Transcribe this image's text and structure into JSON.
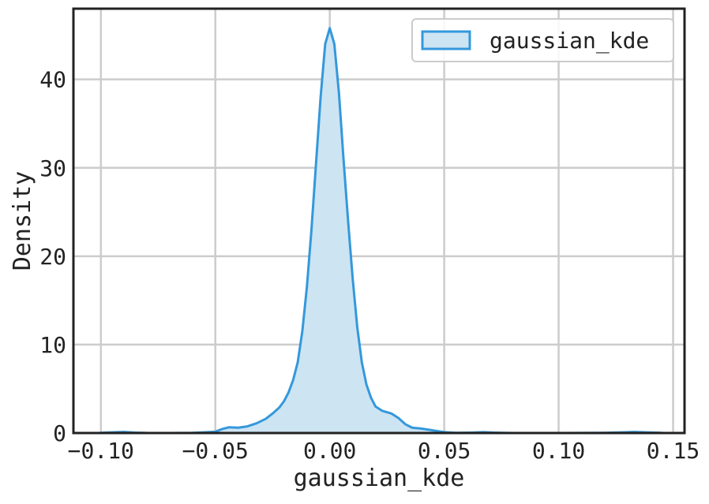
{
  "chart_data": {
    "type": "area",
    "title": "",
    "xlabel": "gaussian_kde",
    "ylabel": "Density",
    "xlim": [
      -0.112,
      0.155
    ],
    "ylim": [
      0,
      48
    ],
    "x_ticks": [
      -0.1,
      -0.05,
      0.0,
      0.05,
      0.1,
      0.15
    ],
    "x_tick_labels": [
      "−0.10",
      "−0.05",
      "0.00",
      "0.05",
      "0.10",
      "0.15"
    ],
    "y_ticks": [
      0,
      10,
      20,
      30,
      40
    ],
    "y_tick_labels": [
      "0",
      "10",
      "20",
      "30",
      "40"
    ],
    "grid": true,
    "legend_position": "top-right",
    "series": [
      {
        "name": "gaussian_kde",
        "color": "#3498db",
        "fill_color": "#cde4f3",
        "points": [
          [
            -0.1,
            0.02
          ],
          [
            -0.095,
            0.08
          ],
          [
            -0.09,
            0.12
          ],
          [
            -0.085,
            0.05
          ],
          [
            -0.08,
            0.01
          ],
          [
            -0.07,
            0.0
          ],
          [
            -0.06,
            0.02
          ],
          [
            -0.055,
            0.08
          ],
          [
            -0.05,
            0.15
          ],
          [
            -0.047,
            0.45
          ],
          [
            -0.044,
            0.65
          ],
          [
            -0.04,
            0.6
          ],
          [
            -0.036,
            0.75
          ],
          [
            -0.032,
            1.1
          ],
          [
            -0.028,
            1.6
          ],
          [
            -0.025,
            2.2
          ],
          [
            -0.022,
            2.9
          ],
          [
            -0.02,
            3.6
          ],
          [
            -0.018,
            4.6
          ],
          [
            -0.016,
            6.0
          ],
          [
            -0.014,
            8.0
          ],
          [
            -0.012,
            11.5
          ],
          [
            -0.01,
            16.5
          ],
          [
            -0.008,
            23.0
          ],
          [
            -0.006,
            30.5
          ],
          [
            -0.004,
            38.0
          ],
          [
            -0.002,
            44.0
          ],
          [
            0.0,
            45.8
          ],
          [
            0.002,
            44.0
          ],
          [
            0.004,
            38.5
          ],
          [
            0.006,
            31.0
          ],
          [
            0.008,
            24.0
          ],
          [
            0.01,
            17.5
          ],
          [
            0.012,
            12.0
          ],
          [
            0.014,
            8.0
          ],
          [
            0.016,
            5.5
          ],
          [
            0.018,
            4.0
          ],
          [
            0.02,
            3.0
          ],
          [
            0.023,
            2.5
          ],
          [
            0.027,
            2.2
          ],
          [
            0.03,
            1.7
          ],
          [
            0.033,
            1.0
          ],
          [
            0.036,
            0.6
          ],
          [
            0.04,
            0.5
          ],
          [
            0.045,
            0.3
          ],
          [
            0.05,
            0.1
          ],
          [
            0.055,
            0.02
          ],
          [
            0.062,
            0.05
          ],
          [
            0.067,
            0.1
          ],
          [
            0.072,
            0.04
          ],
          [
            0.08,
            0.0
          ],
          [
            0.1,
            0.0
          ],
          [
            0.12,
            0.02
          ],
          [
            0.128,
            0.08
          ],
          [
            0.133,
            0.12
          ],
          [
            0.138,
            0.08
          ],
          [
            0.145,
            0.02
          ]
        ]
      }
    ]
  }
}
